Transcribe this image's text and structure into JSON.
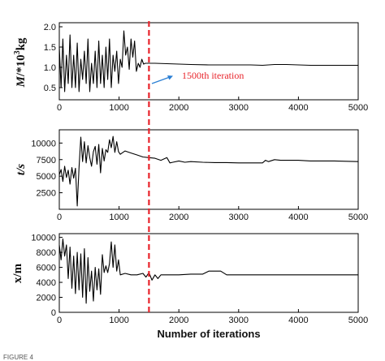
{
  "colors": {
    "series": "#000000",
    "marker_line": "#e8232a",
    "arrow": "#2b7fd4",
    "annotation_text": "#e8232a"
  },
  "caption": "FIGURE 4",
  "chart_data": [
    {
      "type": "line",
      "ylabel_parts": [
        "M",
        "/*10",
        "3",
        "kg"
      ],
      "xlim": [
        0,
        5000
      ],
      "ylim": [
        0.2,
        2.1
      ],
      "xticks": [
        0,
        1000,
        2000,
        3000,
        4000,
        5000
      ],
      "yticks": [
        0.5,
        1.0,
        1.5,
        2.0
      ],
      "ytick_labels": [
        "0.5",
        "1.0",
        "1.5",
        "2.0"
      ],
      "series": [
        {
          "x": [
            0,
            30,
            60,
            90,
            120,
            150,
            180,
            210,
            240,
            270,
            300,
            330,
            360,
            390,
            420,
            450,
            480,
            510,
            540,
            570,
            600,
            630,
            660,
            690,
            720,
            750,
            780,
            810,
            840,
            870,
            900,
            930,
            960,
            990,
            1020,
            1050,
            1080,
            1110,
            1140,
            1170,
            1200,
            1230,
            1260,
            1290,
            1320,
            1350,
            1380,
            1410,
            1440,
            1470,
            1500,
            1600,
            1800,
            2000,
            2200,
            2500,
            2800,
            3000,
            3200,
            3400,
            3600,
            3800,
            4000,
            4200,
            4500,
            4800,
            5000
          ],
          "y": [
            1.5,
            0.5,
            1.7,
            0.4,
            1.3,
            0.6,
            1.8,
            0.5,
            1.3,
            0.5,
            1.6,
            0.4,
            1.2,
            0.7,
            1.4,
            0.6,
            1.7,
            0.4,
            1.1,
            0.6,
            1.4,
            0.5,
            1.65,
            0.6,
            1.3,
            0.5,
            1.5,
            0.7,
            1.7,
            0.5,
            1.3,
            0.9,
            1.4,
            0.6,
            1.2,
            1.0,
            1.9,
            1.3,
            1.5,
            0.95,
            1.7,
            1.25,
            1.65,
            0.9,
            1.1,
            1.0,
            1.2,
            1.08,
            1.1,
            1.1,
            1.1,
            1.1,
            1.09,
            1.08,
            1.07,
            1.06,
            1.06,
            1.06,
            1.06,
            1.05,
            1.07,
            1.07,
            1.06,
            1.05,
            1.05,
            1.05,
            1.05
          ]
        }
      ]
    },
    {
      "type": "line",
      "ylabel": "t/s",
      "xlim": [
        0,
        5000
      ],
      "ylim": [
        0,
        12000
      ],
      "xticks": [
        0,
        1000,
        2000,
        3000,
        4000,
        5000
      ],
      "yticks": [
        2500,
        5000,
        7500,
        10000
      ],
      "series": [
        {
          "x": [
            0,
            30,
            60,
            90,
            120,
            150,
            180,
            210,
            240,
            270,
            300,
            330,
            360,
            390,
            420,
            450,
            480,
            510,
            540,
            570,
            600,
            630,
            660,
            690,
            720,
            750,
            780,
            810,
            840,
            870,
            900,
            930,
            960,
            990,
            1020,
            1050,
            1100,
            1200,
            1300,
            1400,
            1500,
            1600,
            1700,
            1800,
            1850,
            1900,
            2000,
            2100,
            2200,
            2400,
            2600,
            2800,
            3000,
            3200,
            3400,
            3450,
            3500,
            3600,
            3700,
            3800,
            4000,
            4200,
            4400,
            4600,
            4800,
            5000
          ],
          "y": [
            5200,
            6000,
            4200,
            6500,
            4800,
            5900,
            3800,
            6300,
            4700,
            6200,
            500,
            6300,
            10900,
            7200,
            10200,
            7000,
            9600,
            7800,
            6500,
            8700,
            9500,
            6800,
            9800,
            5500,
            9200,
            7300,
            9000,
            8600,
            10500,
            9300,
            11000,
            8600,
            10200,
            8700,
            8300,
            8500,
            8800,
            8500,
            8200,
            7900,
            7800,
            7700,
            7400,
            7800,
            7000,
            7100,
            7300,
            7100,
            7200,
            7100,
            7050,
            7050,
            7000,
            7000,
            7000,
            7400,
            7200,
            7500,
            7400,
            7400,
            7400,
            7300,
            7300,
            7300,
            7250,
            7200
          ]
        }
      ]
    },
    {
      "type": "line",
      "ylabel": "x/m",
      "xlim": [
        0,
        5000
      ],
      "ylim": [
        0,
        10500
      ],
      "xticks": [
        0,
        1000,
        2000,
        3000,
        4000,
        5000
      ],
      "xtick_labels": [
        "0",
        "1000",
        "2000",
        "3000",
        "4000",
        "5000"
      ],
      "yticks": [
        0,
        2000,
        4000,
        6000,
        8000,
        10000
      ],
      "xlabel": "Number of iterations",
      "series": [
        {
          "x": [
            0,
            30,
            60,
            90,
            120,
            150,
            180,
            210,
            240,
            270,
            300,
            330,
            360,
            390,
            420,
            450,
            480,
            510,
            540,
            570,
            600,
            630,
            660,
            690,
            720,
            750,
            780,
            810,
            840,
            870,
            900,
            930,
            960,
            990,
            1020,
            1100,
            1200,
            1300,
            1400,
            1450,
            1500,
            1550,
            1600,
            1650,
            1700,
            1800,
            2000,
            2200,
            2400,
            2500,
            2600,
            2700,
            2800,
            3000,
            3200,
            3400,
            3600,
            3800,
            4000,
            4200,
            4400,
            4600,
            4800,
            5000
          ],
          "y": [
            9000,
            7000,
            9800,
            7500,
            9000,
            4500,
            8700,
            3200,
            7500,
            2500,
            8000,
            3000,
            7800,
            2000,
            8500,
            1200,
            7300,
            2800,
            5500,
            1500,
            6000,
            3000,
            5800,
            2400,
            7700,
            5300,
            6200,
            5300,
            6500,
            9400,
            6000,
            9000,
            5500,
            7000,
            5000,
            5200,
            5000,
            5000,
            5200,
            4700,
            5300,
            4300,
            5000,
            4500,
            5000,
            5000,
            5000,
            5100,
            5100,
            5500,
            5500,
            5500,
            5000,
            5000,
            5000,
            5000,
            5000,
            5000,
            5000,
            5000,
            5000,
            5000,
            5000,
            5000
          ]
        }
      ]
    }
  ],
  "marker": {
    "x": 1500,
    "label": "1500th iteration"
  }
}
